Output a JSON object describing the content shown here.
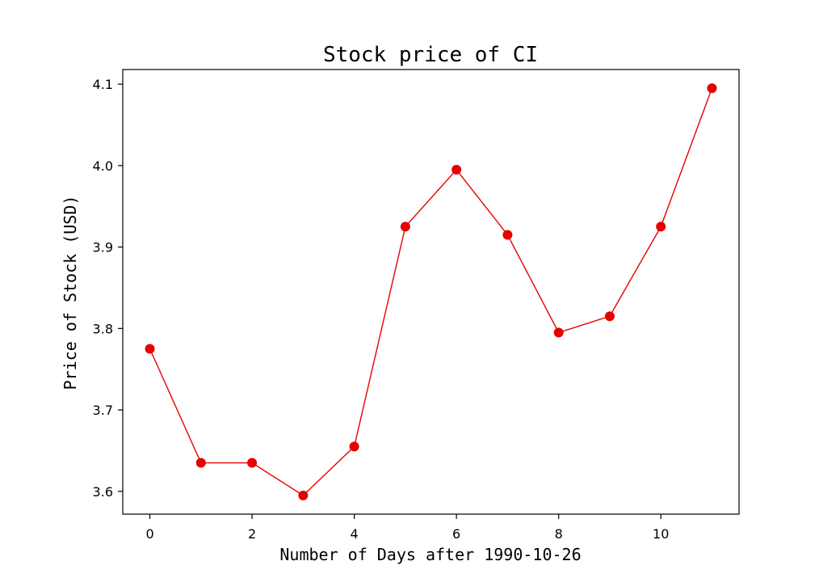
{
  "chart_data": {
    "type": "line",
    "title": "Stock price of CI",
    "xlabel": "Number of Days after 1990-10-26",
    "ylabel": "Price of Stock (USD)",
    "x": [
      0,
      1,
      2,
      3,
      4,
      5,
      6,
      7,
      8,
      9,
      10,
      11
    ],
    "series": [
      {
        "values": [
          3.775,
          3.635,
          3.635,
          3.595,
          3.655,
          3.925,
          3.995,
          3.915,
          3.795,
          3.815,
          3.925,
          4.095
        ],
        "color": "#e60000",
        "marker": "circle"
      }
    ],
    "xlim": [
      -0.53,
      11.53
    ],
    "ylim": [
      3.572,
      4.118
    ],
    "xticks": [
      0,
      2,
      4,
      6,
      8,
      10
    ],
    "xtick_labels": [
      "0",
      "2",
      "4",
      "6",
      "8",
      "10"
    ],
    "yticks": [
      3.6,
      3.7,
      3.8,
      3.9,
      4.0,
      4.1
    ],
    "ytick_labels": [
      "3.6",
      "3.7",
      "3.8",
      "3.9",
      "4.0",
      "4.1"
    ],
    "grid": false,
    "legend": "none"
  }
}
